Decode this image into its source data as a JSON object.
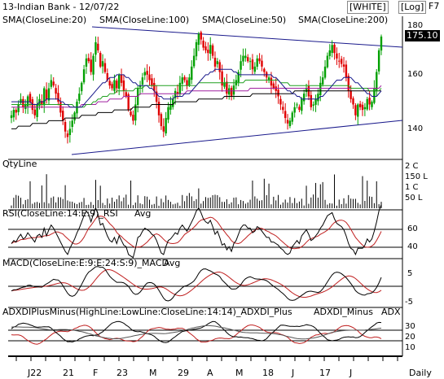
{
  "header": {
    "title": "13-Indian Bank - 12/07/22",
    "theme_label": "[WHITE]",
    "log_label": "[Log]",
    "key_label": "F7"
  },
  "price_panel": {
    "legend": [
      {
        "label": "SMA(CloseLine:20)",
        "color": "#1a1a8c"
      },
      {
        "label": "SMA(CloseLine:100)",
        "color": "#a020a0"
      },
      {
        "label": "SMA(CloseLine:50)",
        "color": "#20a020"
      },
      {
        "label": "SMA(CloseLine:200)",
        "color": "#000000"
      }
    ],
    "y_ticks": [
      "180",
      "160",
      "140"
    ],
    "last_price": "175.10"
  },
  "volume_panel": {
    "title": "QtyLine",
    "y_ticks": [
      "2 C",
      "150 L",
      "1 C",
      "50 L"
    ]
  },
  "rsi_panel": {
    "title": "RSI(CloseLine:14:E:9)_RSI",
    "avg_label": "Avg",
    "y_ticks": [
      "60",
      "40"
    ]
  },
  "macd_panel": {
    "title": "MACD(CloseLine:E:9:E:24:S:9)_MACD",
    "avg_label": "Avg",
    "y_ticks": [
      "5",
      "-5"
    ]
  },
  "adx_panel": {
    "title": "ADXDIPlusMinus(HighLine:LowLine:CloseLine:14:14)_ADXDI_Plus",
    "minus_label": "ADXDI_Minus",
    "adx_label": "ADX",
    "y_ticks": [
      "30",
      "20",
      "10"
    ]
  },
  "x_axis": {
    "labels": [
      "J22",
      "21",
      "F",
      "23",
      "M",
      "29",
      "A",
      "M",
      "18",
      "J",
      "17",
      "J"
    ],
    "period": "Daily"
  },
  "colors": {
    "up": "#00a000",
    "down": "#e00000",
    "sma20": "#1a1a8c",
    "sma100": "#a020a0",
    "sma50": "#20a020",
    "sma200": "#000000",
    "avg": "#c02020"
  },
  "chart_data": {
    "type": "line",
    "title": "13-Indian Bank - 12/07/22",
    "price_ylim": [
      130,
      182
    ],
    "close_series": [
      146,
      148,
      147,
      150,
      152,
      149,
      150,
      153,
      151,
      148,
      146,
      150,
      152,
      150,
      156,
      152,
      156,
      159,
      157,
      154,
      151,
      147,
      144,
      140,
      138,
      141,
      144,
      147,
      151,
      154,
      158,
      163,
      167,
      166,
      162,
      168,
      173,
      170,
      164,
      166,
      162,
      159,
      157,
      156,
      159,
      156,
      161,
      158,
      155,
      153,
      148,
      146,
      144,
      150,
      156,
      157,
      160,
      162,
      161,
      159,
      157,
      155,
      151,
      146,
      142,
      140,
      145,
      149,
      150,
      152,
      155,
      154,
      158,
      160,
      159,
      157,
      160,
      164,
      168,
      173,
      176,
      174,
      171,
      170,
      169,
      172,
      168,
      164,
      166,
      162,
      157,
      158,
      154,
      156,
      153,
      157,
      159,
      162,
      166,
      168,
      168,
      166,
      166,
      163,
      164,
      167,
      166,
      164,
      162,
      160,
      160,
      157,
      156,
      155,
      153,
      150,
      148,
      145,
      143,
      144,
      147,
      149,
      150,
      148,
      152,
      154,
      156,
      153,
      149,
      150,
      152,
      154,
      158,
      160,
      164,
      168,
      170,
      172,
      169,
      167,
      166,
      165,
      164,
      160,
      155,
      152,
      150,
      146,
      150,
      149,
      148,
      149,
      152,
      150,
      151,
      156,
      162,
      170,
      175.1
    ],
    "sma20": [
      151,
      151,
      151,
      151,
      151,
      151,
      151,
      151,
      151,
      150,
      150,
      150,
      151,
      151,
      151,
      152,
      152,
      152,
      152,
      152,
      152,
      151,
      151,
      150,
      150,
      149,
      149,
      149,
      149,
      149,
      149,
      150,
      151,
      152,
      153,
      154,
      155,
      156,
      157,
      158,
      158,
      159,
      160,
      160,
      160,
      161,
      161,
      161,
      161,
      160,
      160,
      159,
      158,
      158,
      157,
      157,
      157,
      157,
      157,
      156,
      156,
      155,
      154,
      153,
      153,
      152,
      152,
      152,
      152,
      152,
      153,
      153,
      153,
      153,
      154,
      154,
      154,
      155,
      156,
      157,
      158,
      159,
      160,
      161,
      161,
      162,
      162,
      163,
      163,
      163,
      163,
      163,
      163,
      163,
      163,
      162,
      162,
      161,
      161,
      161,
      161,
      161,
      161,
      161,
      161,
      161,
      161,
      161,
      161,
      161,
      161,
      161,
      160,
      160,
      159,
      158,
      157,
      156,
      155,
      155,
      154,
      154,
      153,
      153,
      152,
      152,
      152,
      152,
      152,
      152,
      152,
      152,
      153,
      153,
      154,
      155,
      156,
      157,
      158,
      159,
      159,
      159,
      160,
      160,
      160,
      160,
      159,
      158,
      158,
      157,
      156,
      155,
      154,
      154,
      153,
      153,
      153,
      154,
      155
    ],
    "sma50": [
      150,
      150,
      150,
      150,
      150,
      150,
      150,
      150,
      150,
      150,
      150,
      150,
      150,
      150,
      150,
      150,
      150,
      150,
      150,
      150,
      150,
      150,
      150,
      150,
      150,
      150,
      150,
      149,
      149,
      149,
      149,
      149,
      150,
      150,
      150,
      151,
      151,
      152,
      152,
      153,
      153,
      153,
      154,
      154,
      154,
      155,
      155,
      155,
      155,
      155,
      155,
      155,
      155,
      156,
      156,
      156,
      156,
      157,
      157,
      157,
      157,
      157,
      157,
      157,
      157,
      157,
      157,
      157,
      157,
      157,
      157,
      157,
      157,
      157,
      157,
      157,
      157,
      157,
      157,
      157,
      158,
      158,
      158,
      158,
      158,
      158,
      158,
      158,
      158,
      158,
      158,
      158,
      158,
      158,
      158,
      158,
      158,
      158,
      158,
      158,
      159,
      159,
      159,
      159,
      159,
      159,
      159,
      159,
      159,
      159,
      159,
      159,
      159,
      159,
      159,
      158,
      158,
      158,
      158,
      157,
      157,
      157,
      157,
      157,
      157,
      157,
      157,
      157,
      157,
      157,
      157,
      157,
      157,
      157,
      157,
      157,
      157,
      157,
      157,
      157,
      157,
      157,
      157,
      157,
      157,
      156,
      156,
      156,
      156,
      156,
      156,
      156,
      156,
      155,
      155,
      155,
      155,
      155,
      156
    ],
    "sma100": [
      149,
      149,
      149,
      149,
      149,
      149,
      149,
      149,
      149,
      149,
      149,
      149,
      149,
      149,
      149,
      149,
      149,
      149,
      149,
      149,
      149,
      149,
      149,
      149,
      149,
      149,
      149,
      149,
      149,
      149,
      150,
      150,
      150,
      150,
      150,
      150,
      150,
      151,
      151,
      151,
      151,
      151,
      152,
      152,
      152,
      152,
      152,
      152,
      153,
      153,
      153,
      153,
      153,
      153,
      153,
      154,
      154,
      154,
      154,
      154,
      154,
      154,
      154,
      154,
      154,
      154,
      154,
      154,
      154,
      154,
      154,
      154,
      154,
      154,
      154,
      155,
      155,
      155,
      155,
      155,
      155,
      155,
      155,
      155,
      155,
      155,
      155,
      155,
      155,
      155,
      155,
      155,
      155,
      155,
      155,
      155,
      155,
      155,
      155,
      155,
      155,
      155,
      156,
      156,
      156,
      156,
      156,
      156,
      156,
      156,
      156,
      156,
      156,
      156,
      156,
      156,
      156,
      156,
      156,
      156,
      156,
      156,
      156,
      156,
      156,
      156,
      156,
      156,
      156,
      156,
      156,
      156,
      156,
      156,
      156,
      156,
      156,
      156,
      156,
      156,
      156,
      156,
      156,
      156,
      156,
      156,
      156,
      156,
      156,
      156,
      156,
      156,
      156,
      156,
      156,
      156,
      156,
      156,
      157
    ],
    "sma200": [
      141,
      141,
      141,
      142,
      142,
      142,
      142,
      142,
      142,
      143,
      143,
      143,
      143,
      143,
      143,
      143,
      144,
      144,
      144,
      144,
      144,
      144,
      144,
      145,
      145,
      145,
      145,
      145,
      145,
      145,
      146,
      146,
      146,
      146,
      146,
      146,
      146,
      147,
      147,
      147,
      147,
      147,
      147,
      147,
      148,
      148,
      148,
      148,
      148,
      148,
      148,
      148,
      149,
      149,
      149,
      149,
      149,
      149,
      149,
      149,
      150,
      150,
      150,
      150,
      150,
      150,
      150,
      150,
      150,
      150,
      151,
      151,
      151,
      151,
      151,
      151,
      151,
      151,
      151,
      151,
      152,
      152,
      152,
      152,
      152,
      152,
      152,
      152,
      152,
      152,
      152,
      153,
      153,
      153,
      153,
      153,
      153,
      153,
      153,
      153,
      153,
      153,
      153,
      154,
      154,
      154,
      154,
      154,
      154,
      154,
      154,
      154,
      154,
      154,
      154,
      154,
      154,
      154,
      154,
      154,
      154,
      155,
      155,
      155,
      155,
      155,
      155,
      155,
      155,
      155,
      155,
      155,
      155,
      155,
      155,
      155,
      155,
      155,
      155,
      155,
      155,
      155,
      155,
      155,
      155,
      155,
      155,
      155,
      155,
      155,
      155,
      155,
      155,
      155,
      155,
      155,
      155,
      155,
      155
    ]
  }
}
